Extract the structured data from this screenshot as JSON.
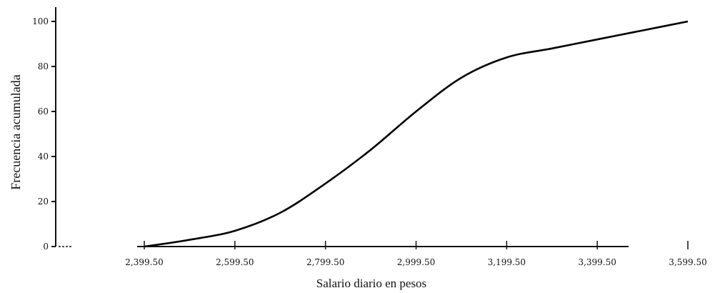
{
  "chart_data": {
    "type": "line",
    "title": "",
    "xlabel": "Salario diario en pesos",
    "ylabel": "Frecuencia acumulada",
    "x_ticks": [
      2399.5,
      2599.5,
      2799.5,
      2999.5,
      3199.5,
      3399.5,
      3599.5
    ],
    "x_tick_labels": [
      "2,399.50",
      "2,599.50",
      "2,799.50",
      "2,999.50",
      "3,199.50",
      "3,399.50",
      "3,599.50"
    ],
    "y_ticks": [
      0,
      20,
      40,
      60,
      80,
      100
    ],
    "y_tick_labels": [
      "0",
      "20",
      "40",
      "60",
      "80",
      "100"
    ],
    "xlim": [
      2399.5,
      3599.5
    ],
    "ylim": [
      0,
      100
    ],
    "grid": false,
    "series": [
      {
        "x": [
          2399.5,
          2499.5,
          2599.5,
          2699.5,
          2799.5,
          2899.5,
          2999.5,
          3099.5,
          3199.5,
          3299.5,
          3399.5,
          3499.5,
          3599.5
        ],
        "values": [
          0,
          3,
          7,
          15,
          28,
          43,
          60,
          75,
          84,
          88,
          92,
          96,
          100
        ]
      }
    ],
    "line_color": "#000000"
  }
}
